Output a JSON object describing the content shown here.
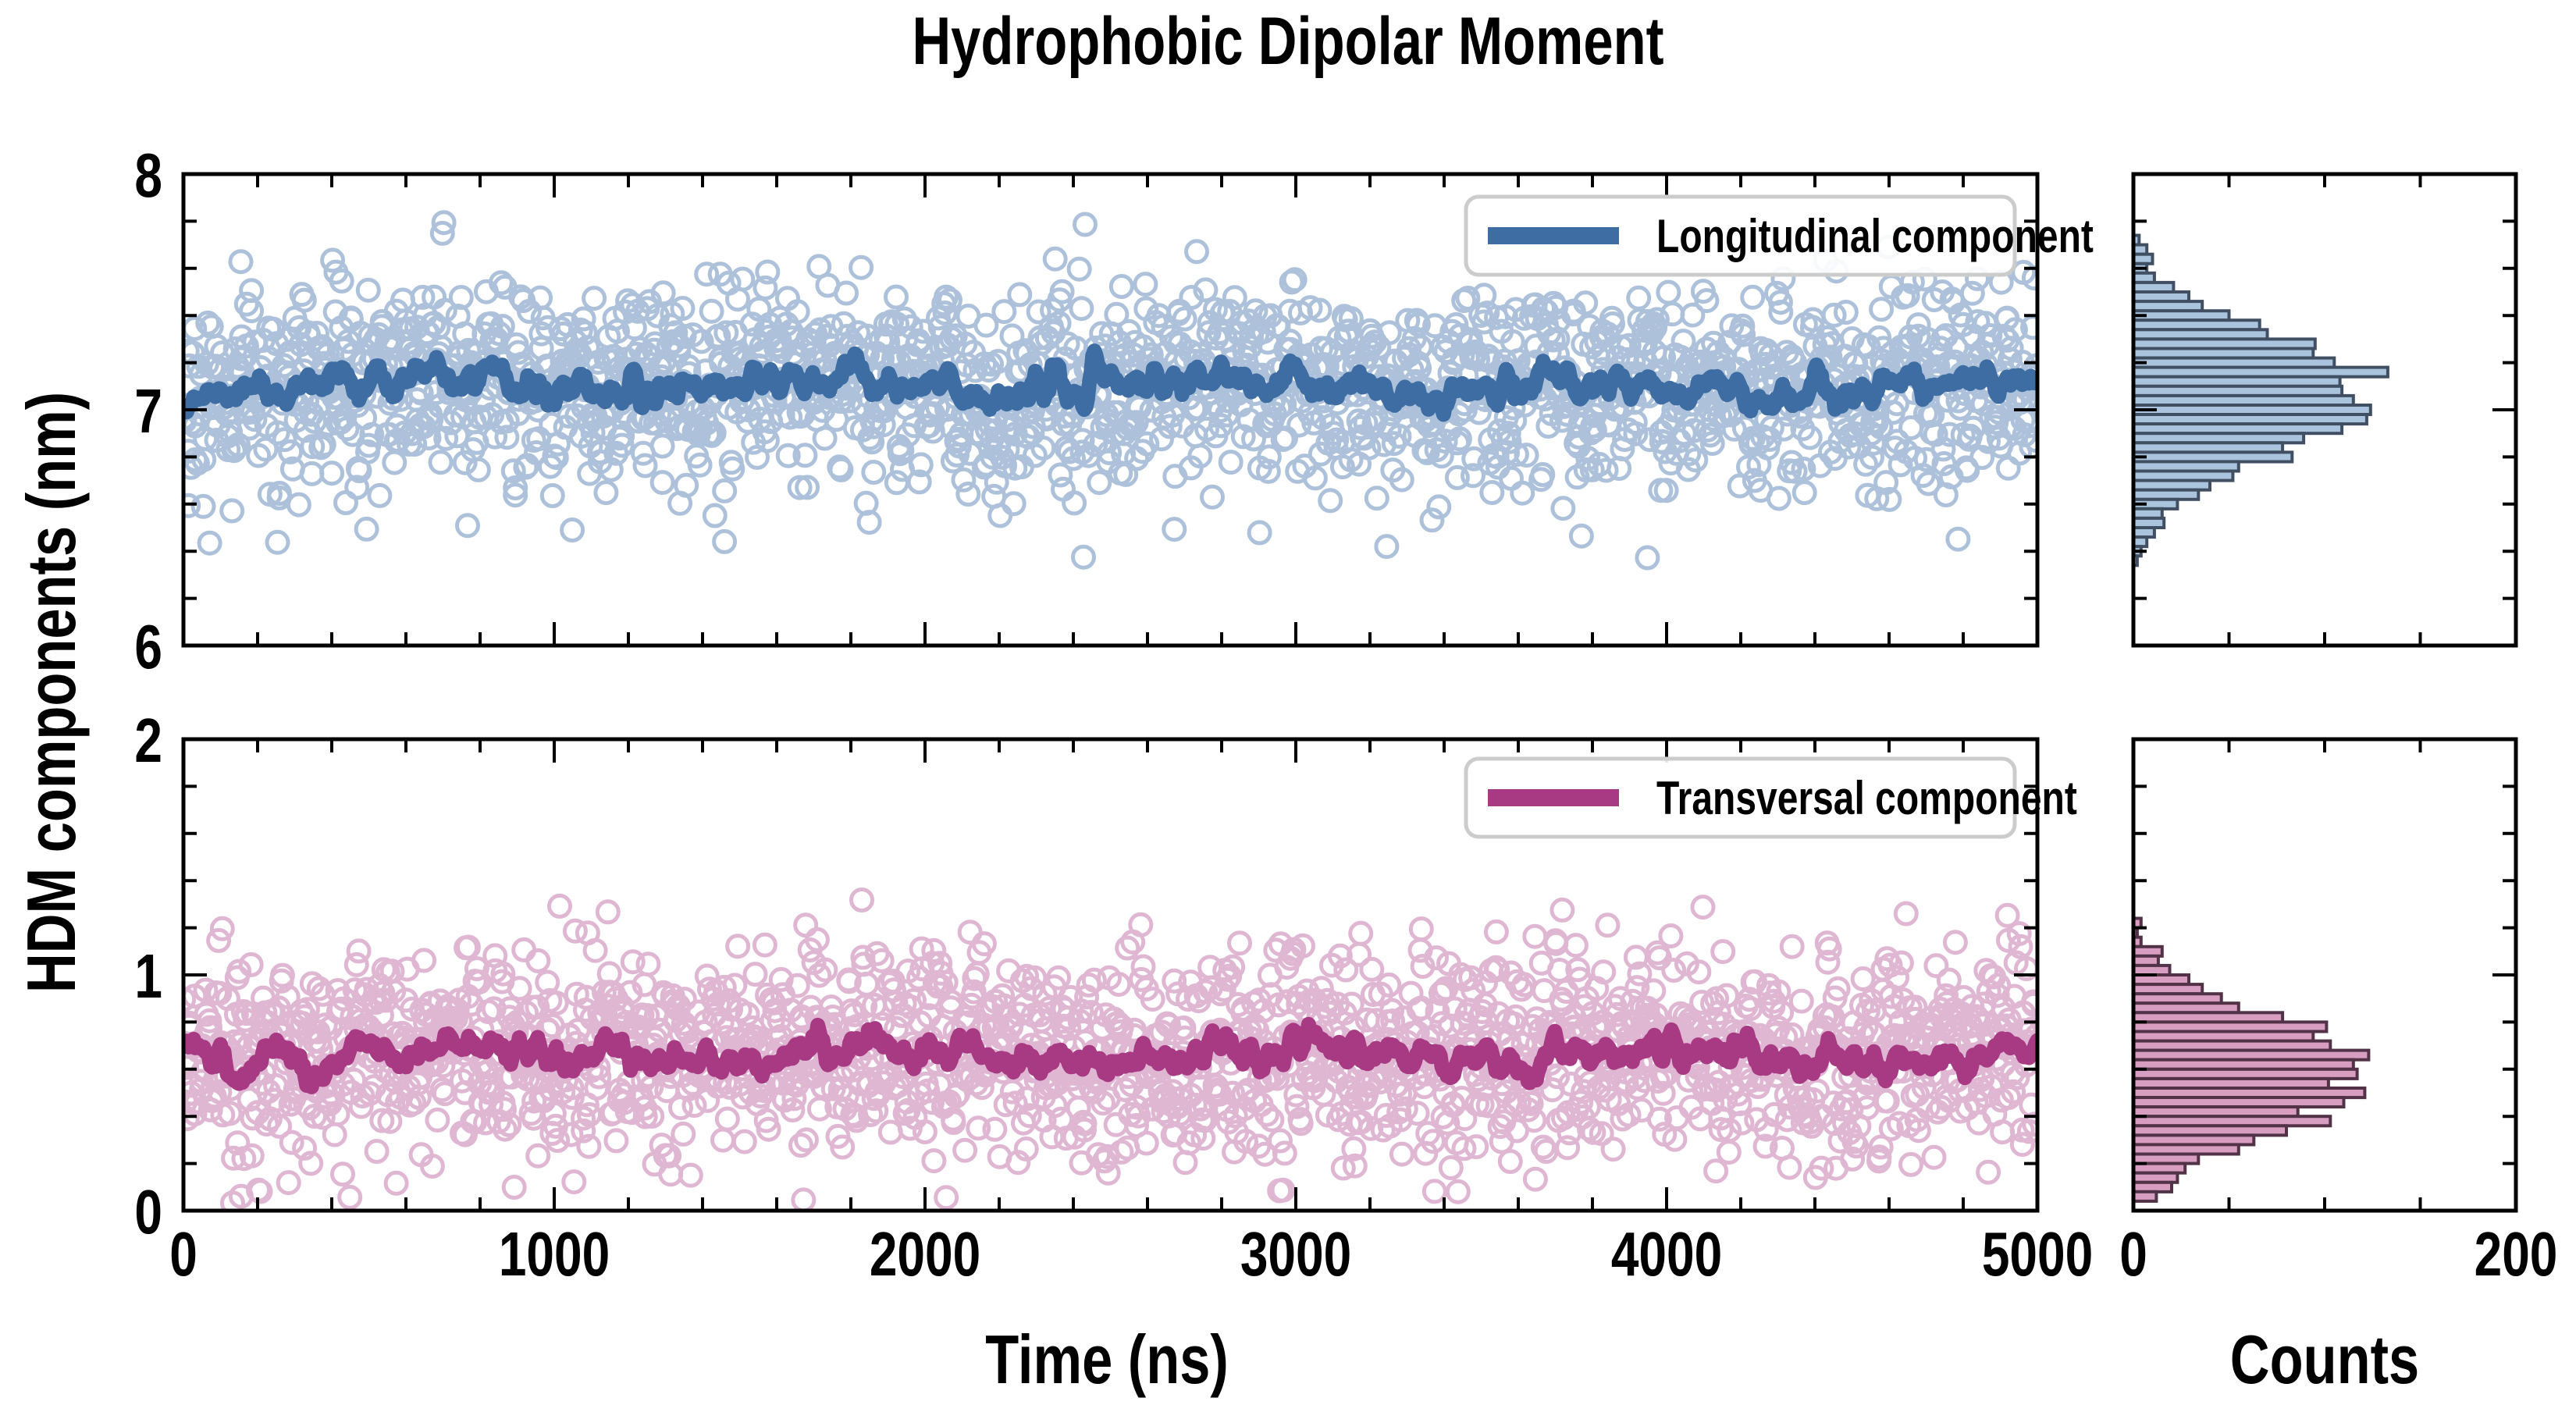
{
  "title": "Hydrophobic Dipolar Moment",
  "labels": {
    "x": "Time (ns)",
    "y": "HDM components (nm)",
    "counts": "Counts"
  },
  "legends": {
    "top": "Longitudinal component",
    "bottom": "Transversal component"
  },
  "colors": {
    "top_line": "#3d6da3",
    "top_marker": "#4a78ad",
    "top_hist_fill": "#aac4de",
    "top_hist_edge": "#414f63",
    "bottom_line": "#a73a82",
    "bottom_marker": "#b85f9d",
    "bottom_hist_fill": "#d89ec1",
    "bottom_hist_edge": "#513247",
    "legend_border": "#cccccc",
    "axis": "#000000"
  },
  "chart_data": [
    {
      "type": "scatter",
      "panel": "top-left",
      "legend": "Longitudinal component",
      "xlabel": "Time (ns)",
      "ylabel": "HDM components (nm)",
      "xlim": [
        0,
        5000
      ],
      "ylim": [
        6,
        8
      ],
      "x_major_ticks": [
        0,
        1000,
        2000,
        3000,
        4000,
        5000
      ],
      "x_tick_labels": [
        "0",
        "1000",
        "2000",
        "3000",
        "4000",
        "5000"
      ],
      "x_minor_step": 200,
      "y_major_ticks": [
        6,
        7,
        8
      ],
      "y_tick_labels": [
        "6",
        "7",
        "8"
      ],
      "y_minor_step": 0.2,
      "marker": "open-circle",
      "n_points": 1850,
      "mean": 7.1,
      "scatter_sd": 0.21,
      "clip": [
        6.33,
        7.82
      ],
      "line_role": "running average",
      "line_amplitude": 0.08,
      "seed": 11
    },
    {
      "type": "histogram",
      "panel": "top-right",
      "orientation": "horizontal",
      "xlabel": "Counts",
      "xlim": [
        0,
        200
      ],
      "x_minor_ticks": [
        50,
        100,
        150
      ],
      "x_tick_labels": [
        "0",
        "200"
      ],
      "bin_top": 7.74,
      "bin_width": 0.04,
      "counts": [
        3,
        7,
        10,
        7,
        11,
        21,
        29,
        36,
        50,
        66,
        70,
        95,
        94,
        105,
        133,
        108,
        109,
        115,
        124,
        122,
        109,
        89,
        78,
        83,
        55,
        52,
        40,
        34,
        23,
        15,
        16,
        11,
        7,
        4,
        2
      ]
    },
    {
      "type": "scatter",
      "panel": "bottom-left",
      "legend": "Transversal component",
      "xlabel": "Time (ns)",
      "ylabel": "HDM components (nm)",
      "xlim": [
        0,
        5000
      ],
      "ylim": [
        0,
        2
      ],
      "x_major_ticks": [
        0,
        1000,
        2000,
        3000,
        4000,
        5000
      ],
      "x_tick_labels": [
        "0",
        "1000",
        "2000",
        "3000",
        "4000",
        "5000"
      ],
      "x_minor_step": 200,
      "y_major_ticks": [
        0,
        1,
        2
      ],
      "y_tick_labels": [
        "0",
        "1",
        "2"
      ],
      "y_minor_step": 0.2,
      "marker": "open-circle",
      "n_points": 1850,
      "mean": 0.66,
      "scatter_sd": 0.22,
      "clip": [
        0.03,
        1.38
      ],
      "line_role": "running average",
      "line_amplitude": 0.08,
      "seed": 77
    },
    {
      "type": "histogram",
      "panel": "bottom-right",
      "orientation": "horizontal",
      "xlabel": "Counts",
      "xlim": [
        0,
        200
      ],
      "x_minor_ticks": [
        50,
        100,
        150
      ],
      "x_tick_labels": [
        "0",
        "200"
      ],
      "bin_top": 1.24,
      "bin_width": 0.04,
      "counts": [
        4,
        2,
        4,
        15,
        13,
        19,
        29,
        36,
        46,
        55,
        78,
        101,
        94,
        103,
        123,
        115,
        117,
        102,
        121,
        110,
        86,
        103,
        80,
        63,
        55,
        34,
        27,
        23,
        20,
        12
      ]
    }
  ]
}
